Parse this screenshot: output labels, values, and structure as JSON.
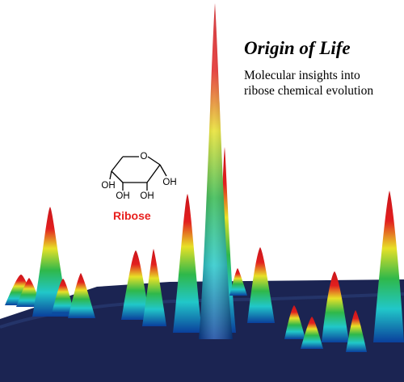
{
  "headline": {
    "title": "Origin of Life",
    "subtitle_line1": "Molecular insights into",
    "subtitle_line2": "ribose chemical evolution"
  },
  "molecule": {
    "name": "Ribose",
    "ring_oxygen": "O",
    "hydroxyl_left": "OH",
    "hydroxyl_c3": "OH",
    "hydroxyl_c2": "OH",
    "hydroxyl_right": "OH"
  },
  "colors": {
    "base_plane": "#1b2452",
    "ramp_low": "#0a3f9c",
    "ramp_cyan": "#21c7c9",
    "ramp_green": "#2fb84a",
    "ramp_yellow": "#e7e127",
    "ramp_high": "#e21f1f",
    "label_red": "#e8201e"
  }
}
